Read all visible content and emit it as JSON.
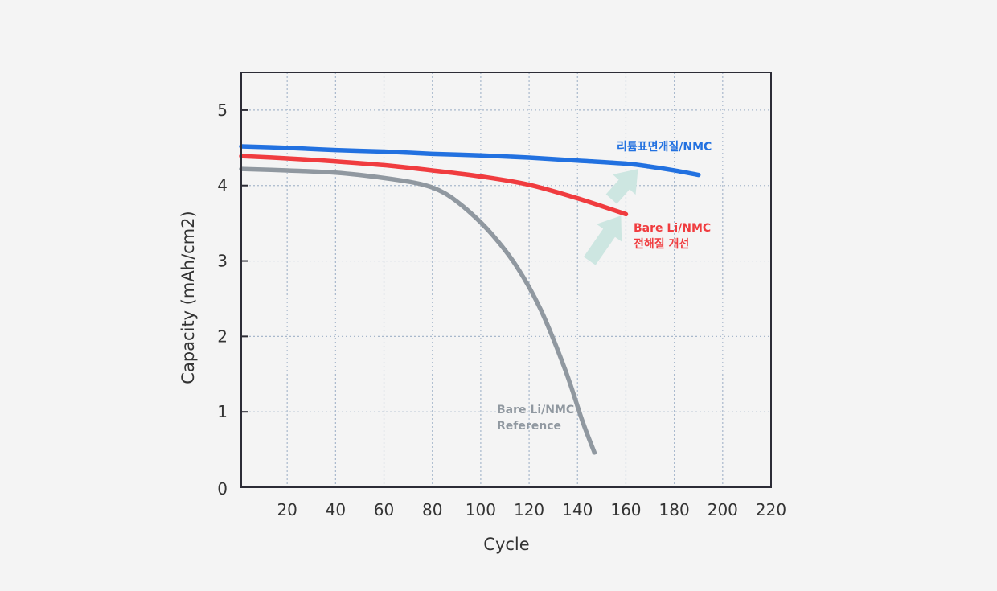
{
  "chart_data": {
    "type": "line",
    "title": "",
    "xlabel": "Cycle",
    "ylabel": "Capacity (mAh/cm2)",
    "xlim": [
      1,
      220
    ],
    "ylim": [
      0,
      5.5
    ],
    "xticks": [
      20,
      40,
      60,
      80,
      100,
      120,
      140,
      160,
      180,
      200,
      220
    ],
    "yticks": [
      0,
      1,
      2,
      3,
      4,
      5
    ],
    "grid": true,
    "series": [
      {
        "name": "리튬표면개질/NMC",
        "label_lines": [
          "리튬표면개질/NMC"
        ],
        "color": "#2271e0",
        "x": [
          1,
          20,
          40,
          60,
          80,
          100,
          120,
          140,
          160,
          170,
          180,
          190
        ],
        "y": [
          4.52,
          4.5,
          4.47,
          4.45,
          4.42,
          4.4,
          4.37,
          4.33,
          4.29,
          4.25,
          4.2,
          4.14
        ]
      },
      {
        "name": "Bare Li/NMC 전해질 개선",
        "label_lines": [
          "Bare Li/NMC",
          "전해질 개선"
        ],
        "color": "#f03c3f",
        "x": [
          1,
          20,
          40,
          60,
          80,
          100,
          120,
          140,
          160
        ],
        "y": [
          4.39,
          4.36,
          4.32,
          4.27,
          4.2,
          4.12,
          4.01,
          3.83,
          3.62
        ]
      },
      {
        "name": "Bare Li/NMC Reference",
        "label_lines": [
          "Bare Li/NMC",
          "Reference"
        ],
        "color": "#9098a0",
        "x": [
          1,
          20,
          40,
          60,
          75,
          85,
          95,
          105,
          115,
          125,
          135,
          142,
          147
        ],
        "y": [
          4.22,
          4.2,
          4.17,
          4.1,
          4.02,
          3.9,
          3.66,
          3.34,
          2.92,
          2.34,
          1.55,
          0.88,
          0.46
        ]
      }
    ],
    "annotations": [
      {
        "type": "arrow",
        "color": "#cde6e1",
        "from": [
          145,
          3.0
        ],
        "to": [
          158,
          3.6
        ]
      },
      {
        "type": "arrow",
        "color": "#cde6e1",
        "from": [
          154,
          3.82
        ],
        "to": [
          165,
          4.22
        ]
      }
    ]
  }
}
